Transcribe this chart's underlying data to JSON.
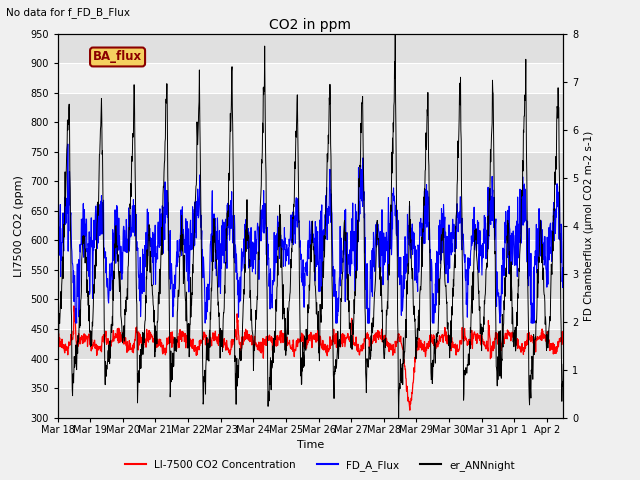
{
  "title": "CO2 in ppm",
  "top_left_text": "No data for f_FD_B_Flux",
  "annotation_box_text": "BA_flux",
  "xlabel": "Time",
  "ylabel_left": "LI7500 CO2 (ppm)",
  "ylabel_right": "FD Chamberflux (µmol CO2 m-2 s-1)",
  "ylim_left": [
    300,
    950
  ],
  "ylim_right": [
    0.0,
    8.0
  ],
  "xtick_labels": [
    "Mar 18",
    "Mar 19",
    "Mar 20",
    "Mar 21",
    "Mar 22",
    "Mar 23",
    "Mar 24",
    "Mar 25",
    "Mar 26",
    "Mar 27",
    "Mar 28",
    "Mar 29",
    "Mar 30",
    "Mar 31",
    "Apr 1",
    "Apr 2"
  ],
  "legend_entries": [
    "LI-7500 CO2 Concentration",
    "FD_A_Flux",
    "er_ANNnight"
  ],
  "line_colors": [
    "red",
    "blue",
    "black"
  ],
  "background_color": "#f0f0f0",
  "plot_bg_color": "#e8e8e8",
  "n_days": 15.5,
  "pts_per_day": 96,
  "band_colors": [
    "#e0e0e0",
    "#f0f0f0"
  ],
  "yticks": [
    300,
    350,
    400,
    450,
    500,
    550,
    600,
    650,
    700,
    750,
    800,
    850,
    900,
    950
  ],
  "right_yticks": [
    0.0,
    1.0,
    2.0,
    3.0,
    4.0,
    5.0,
    6.0,
    7.0,
    8.0
  ],
  "figsize": [
    6.4,
    4.8
  ],
  "dpi": 100
}
